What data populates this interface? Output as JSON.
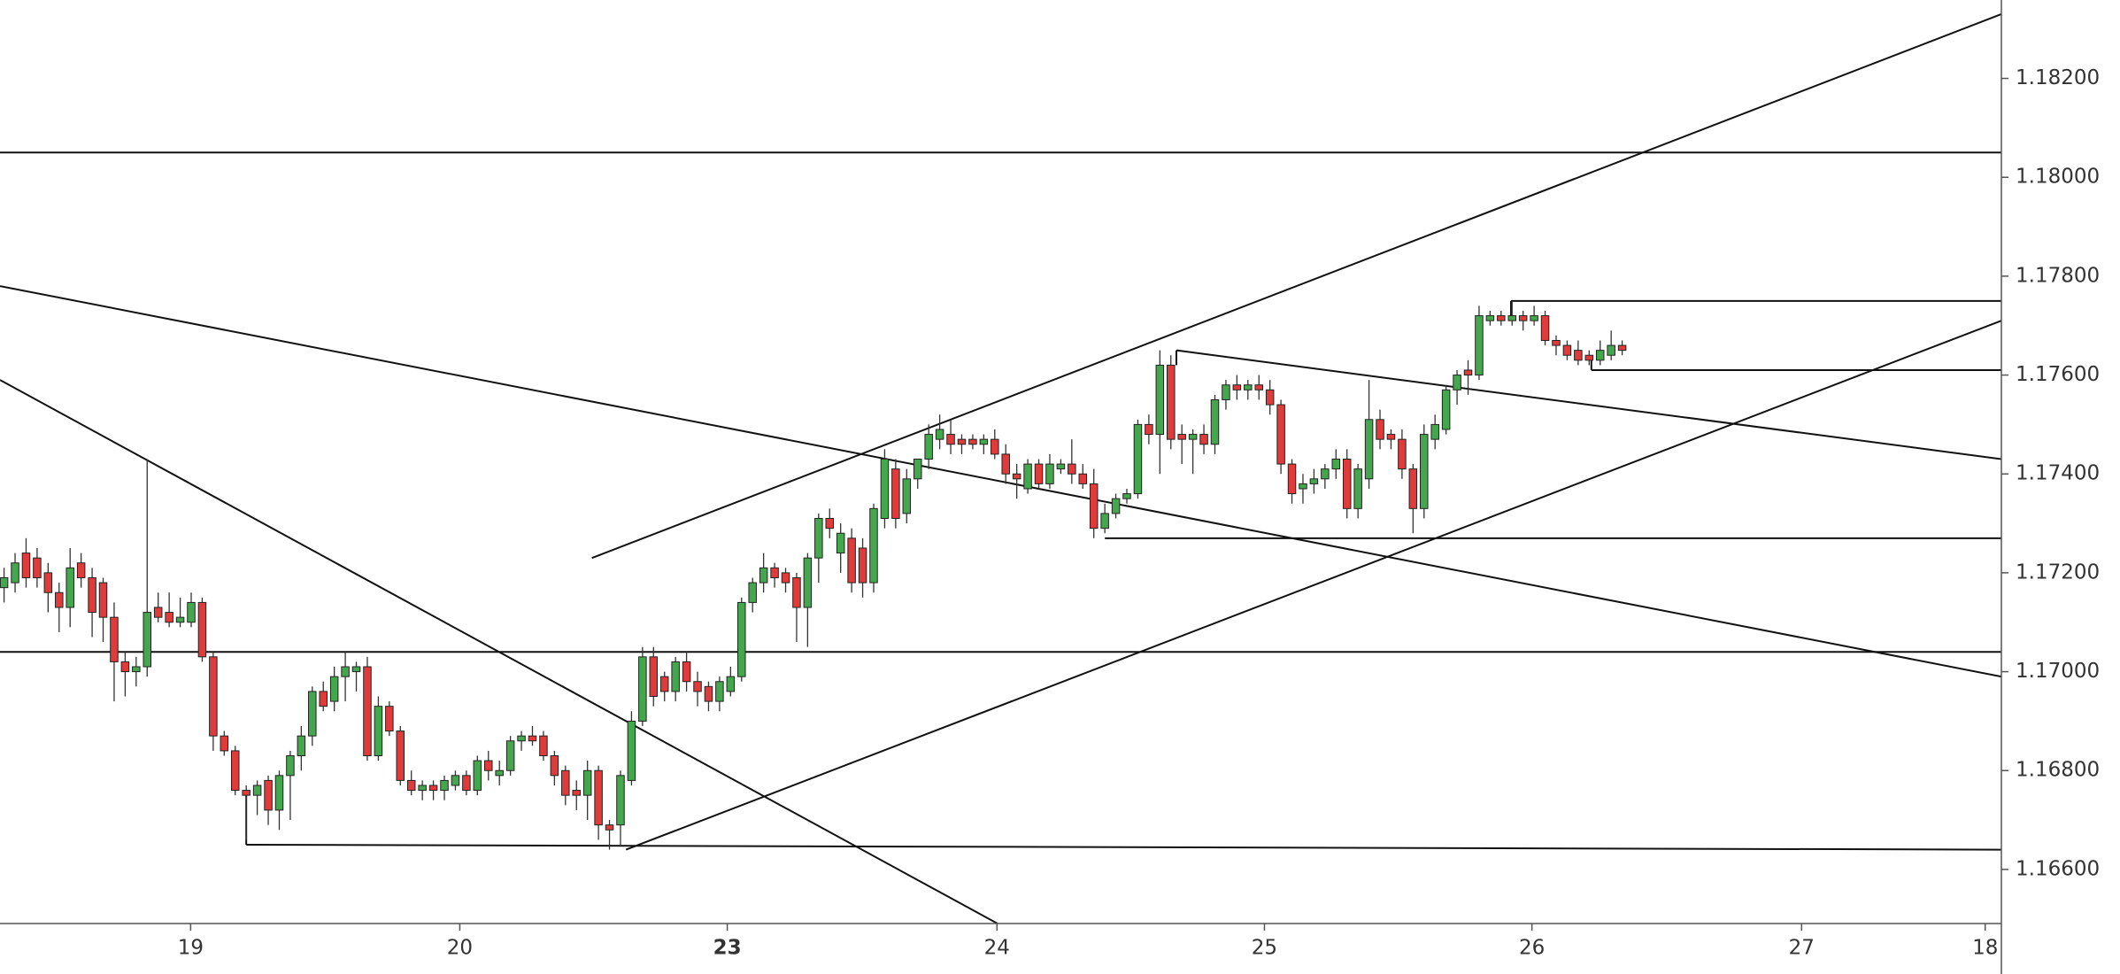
{
  "chart_data": {
    "type": "candlestick",
    "up_color": "#45a74d",
    "down_color": "#e03b3b",
    "xlim": [
      -0.37,
      181.45
    ],
    "xticks": [
      {
        "value": 16.95,
        "label": "19"
      },
      {
        "value": 41.4,
        "label": "20"
      },
      {
        "value": 65.7,
        "label": "23"
      },
      {
        "value": 90.2,
        "label": "24"
      },
      {
        "value": 114.5,
        "label": "25"
      },
      {
        "value": 138.8,
        "label": "26"
      },
      {
        "value": 163.3,
        "label": "27"
      },
      {
        "value": 179.98,
        "label": "18"
      }
    ],
    "ylim": [
      1.164906,
      1.183586
    ],
    "yticks": [
      {
        "value": 1.166,
        "label": "1.16600"
      },
      {
        "value": 1.168,
        "label": "1.16800"
      },
      {
        "value": 1.17,
        "label": "1.17000"
      },
      {
        "value": 1.172,
        "label": "1.17200"
      },
      {
        "value": 1.174,
        "label": "1.17400"
      },
      {
        "value": 1.176,
        "label": "1.17600"
      },
      {
        "value": 1.178,
        "label": "1.17800"
      },
      {
        "value": 1.18,
        "label": "1.18000"
      },
      {
        "value": 1.182,
        "label": "1.18200"
      }
    ],
    "open": [
      1.1717,
      1.1718,
      1.1724,
      1.1723,
      1.172,
      1.1716,
      1.1713,
      1.1722,
      1.1719,
      1.1718,
      1.1711,
      1.1702,
      1.17,
      1.1701,
      1.1713,
      1.1712,
      1.171,
      1.171,
      1.1714,
      1.1703,
      1.1687,
      1.1684,
      1.1676,
      1.1675,
      1.1678,
      1.1672,
      1.1679,
      1.1683,
      1.1687,
      1.1696,
      1.1694,
      1.1699,
      1.17,
      1.1701,
      1.1683,
      1.1693,
      1.1688,
      1.1678,
      1.1676,
      1.1677,
      1.1676,
      1.1677,
      1.1679,
      1.1676,
      1.1682,
      1.1679,
      1.168,
      1.1686,
      1.1687,
      1.1687,
      1.1683,
      1.168,
      1.1676,
      1.1675,
      1.168,
      1.1669,
      1.1669,
      1.1678,
      1.169,
      1.1703,
      1.1699,
      1.1696,
      1.1702,
      1.1698,
      1.1697,
      1.1694,
      1.1696,
      1.1699,
      1.1714,
      1.1718,
      1.1721,
      1.172,
      1.1719,
      1.1713,
      1.1723,
      1.1731,
      1.1724,
      1.1727,
      1.1725,
      1.1718,
      1.1731,
      1.1741,
      1.1732,
      1.1739,
      1.1743,
      1.1747,
      1.1748,
      1.1747,
      1.1747,
      1.1746,
      1.1747,
      1.1744,
      1.174,
      1.1737,
      1.1742,
      1.1738,
      1.1741,
      1.1742,
      1.174,
      1.1738,
      1.1729,
      1.1732,
      1.1735,
      1.1736,
      1.175,
      1.1748,
      1.1762,
      1.1748,
      1.1747,
      1.1748,
      1.1746,
      1.1755,
      1.1758,
      1.1757,
      1.1758,
      1.1757,
      1.1754,
      1.1742,
      1.1737,
      1.1738,
      1.1739,
      1.1741,
      1.1743,
      1.1733,
      1.1739,
      1.1751,
      1.1748,
      1.1747,
      1.1741,
      1.1733,
      1.1747,
      1.1749,
      1.1757,
      1.1761,
      1.176,
      1.1771,
      1.1772,
      1.1771,
      1.1772,
      1.1771,
      1.1772,
      1.1767,
      1.1766,
      1.1765,
      1.1764,
      1.1763,
      1.1764,
      1.1766
    ],
    "high": [
      1.1721,
      1.1724,
      1.1727,
      1.1725,
      1.1722,
      1.1718,
      1.1725,
      1.1724,
      1.1721,
      1.1719,
      1.1714,
      1.1704,
      1.1703,
      1.1743,
      1.1716,
      1.1716,
      1.1715,
      1.1716,
      1.1715,
      1.1704,
      1.1688,
      1.1685,
      1.1677,
      1.1678,
      1.1679,
      1.168,
      1.1684,
      1.1689,
      1.1697,
      1.1698,
      1.1701,
      1.1704,
      1.1702,
      1.1703,
      1.1695,
      1.1694,
      1.1689,
      1.168,
      1.1678,
      1.1678,
      1.1679,
      1.168,
      1.168,
      1.1683,
      1.1684,
      1.1682,
      1.1687,
      1.1688,
      1.1689,
      1.1688,
      1.1684,
      1.1681,
      1.1678,
      1.1682,
      1.1681,
      1.167,
      1.168,
      1.1692,
      1.1705,
      1.1705,
      1.17,
      1.1703,
      1.1704,
      1.17,
      1.1698,
      1.1699,
      1.1701,
      1.1715,
      1.1719,
      1.1724,
      1.1722,
      1.1721,
      1.172,
      1.1724,
      1.1732,
      1.1733,
      1.173,
      1.1729,
      1.1727,
      1.1734,
      1.1745,
      1.1743,
      1.1741,
      1.1743,
      1.175,
      1.1752,
      1.1751,
      1.1748,
      1.1748,
      1.1748,
      1.1749,
      1.1746,
      1.1742,
      1.1743,
      1.1743,
      1.1744,
      1.1743,
      1.1747,
      1.1742,
      1.1741,
      1.1734,
      1.1736,
      1.1737,
      1.1751,
      1.1752,
      1.1765,
      1.1764,
      1.175,
      1.1749,
      1.175,
      1.1756,
      1.1759,
      1.176,
      1.1759,
      1.176,
      1.1759,
      1.1755,
      1.1743,
      1.174,
      1.1741,
      1.1742,
      1.1745,
      1.1745,
      1.1742,
      1.1759,
      1.1753,
      1.1749,
      1.1749,
      1.1742,
      1.175,
      1.1752,
      1.1758,
      1.1761,
      1.1763,
      1.1774,
      1.1773,
      1.1773,
      1.1775,
      1.1773,
      1.1774,
      1.1773,
      1.1768,
      1.1767,
      1.1767,
      1.1765,
      1.1767,
      1.1769,
      1.1767
    ],
    "low": [
      1.1714,
      1.1716,
      1.1717,
      1.1717,
      1.1712,
      1.1708,
      1.1709,
      1.1717,
      1.1707,
      1.1706,
      1.1694,
      1.1695,
      1.1697,
      1.1699,
      1.171,
      1.1709,
      1.1709,
      1.1709,
      1.1702,
      1.1684,
      1.1683,
      1.1675,
      1.1666,
      1.1671,
      1.1669,
      1.1668,
      1.167,
      1.168,
      1.1685,
      1.1692,
      1.1692,
      1.1694,
      1.1696,
      1.1682,
      1.1682,
      1.1687,
      1.1677,
      1.1675,
      1.1674,
      1.1674,
      1.1674,
      1.1676,
      1.1675,
      1.1675,
      1.1678,
      1.1677,
      1.1679,
      1.1684,
      1.1685,
      1.1682,
      1.1677,
      1.1673,
      1.1672,
      1.167,
      1.1666,
      1.1664,
      1.1665,
      1.1677,
      1.1689,
      1.1693,
      1.1694,
      1.1694,
      1.1696,
      1.1693,
      1.1692,
      1.1692,
      1.1695,
      1.1698,
      1.1712,
      1.1716,
      1.1717,
      1.1716,
      1.1706,
      1.1705,
      1.1718,
      1.1727,
      1.172,
      1.1716,
      1.1715,
      1.1716,
      1.1729,
      1.1729,
      1.173,
      1.1737,
      1.1741,
      1.1745,
      1.1744,
      1.1744,
      1.1745,
      1.1744,
      1.1743,
      1.1738,
      1.1735,
      1.1736,
      1.1737,
      1.1737,
      1.174,
      1.1738,
      1.1737,
      1.1727,
      1.1728,
      1.1731,
      1.1734,
      1.1735,
      1.1746,
      1.174,
      1.1745,
      1.1742,
      1.174,
      1.1744,
      1.1744,
      1.1753,
      1.1755,
      1.1755,
      1.1755,
      1.1752,
      1.174,
      1.1734,
      1.1734,
      1.1736,
      1.1737,
      1.1739,
      1.1731,
      1.1731,
      1.1737,
      1.1745,
      1.1745,
      1.1739,
      1.1728,
      1.1731,
      1.1745,
      1.1748,
      1.1754,
      1.1756,
      1.1759,
      1.177,
      1.177,
      1.177,
      1.1769,
      1.177,
      1.1766,
      1.1764,
      1.1763,
      1.1762,
      1.1762,
      1.1762,
      1.1763,
      1.1764
    ],
    "close": [
      1.1719,
      1.1722,
      1.1719,
      1.1719,
      1.1716,
      1.1713,
      1.1721,
      1.1719,
      1.1712,
      1.1711,
      1.1702,
      1.17,
      1.1701,
      1.1712,
      1.1711,
      1.171,
      1.1711,
      1.1714,
      1.1703,
      1.1687,
      1.1684,
      1.1676,
      1.1675,
      1.1677,
      1.1672,
      1.1679,
      1.1683,
      1.1687,
      1.1696,
      1.1693,
      1.1699,
      1.1701,
      1.1701,
      1.1683,
      1.1693,
      1.1688,
      1.1678,
      1.1676,
      1.1677,
      1.1676,
      1.1678,
      1.1679,
      1.1676,
      1.1682,
      1.168,
      1.168,
      1.1686,
      1.1687,
      1.1686,
      1.1683,
      1.1679,
      1.1675,
      1.1675,
      1.168,
      1.1669,
      1.1668,
      1.1679,
      1.169,
      1.1703,
      1.1695,
      1.1696,
      1.1702,
      1.1698,
      1.1696,
      1.1694,
      1.1698,
      1.1699,
      1.1714,
      1.1718,
      1.1721,
      1.1719,
      1.1718,
      1.1713,
      1.1723,
      1.1731,
      1.1729,
      1.1728,
      1.1718,
      1.1718,
      1.1733,
      1.1743,
      1.1731,
      1.1739,
      1.1743,
      1.1748,
      1.1749,
      1.1746,
      1.1746,
      1.1746,
      1.1747,
      1.1744,
      1.174,
      1.1739,
      1.1742,
      1.1738,
      1.1742,
      1.1742,
      1.174,
      1.1738,
      1.1729,
      1.1732,
      1.1735,
      1.1736,
      1.175,
      1.1748,
      1.1762,
      1.1747,
      1.1747,
      1.1748,
      1.1746,
      1.1755,
      1.1758,
      1.1757,
      1.1758,
      1.1757,
      1.1754,
      1.1742,
      1.1736,
      1.1738,
      1.1739,
      1.1741,
      1.1743,
      1.1733,
      1.1741,
      1.1751,
      1.1747,
      1.1747,
      1.1741,
      1.1733,
      1.1748,
      1.175,
      1.1757,
      1.176,
      1.176,
      1.1772,
      1.1772,
      1.1771,
      1.1772,
      1.1771,
      1.1772,
      1.1767,
      1.1766,
      1.1764,
      1.1763,
      1.1763,
      1.1765,
      1.1766,
      1.1765
    ],
    "drawings": [
      {
        "x": [
          -0.37,
          181.45
        ],
        "y": [
          1.1805,
          1.1805
        ]
      },
      {
        "x": [
          -0.37,
          181.45
        ],
        "y": [
          1.1704,
          1.1704
        ]
      },
      {
        "x": [
          -0.37,
          181.45
        ],
        "y": [
          1.1778,
          1.1699
        ]
      },
      {
        "x": [
          106.5,
          181.45
        ],
        "y": [
          1.1765,
          1.1743
        ]
      },
      {
        "x": [
          -0.37,
          90.3
        ],
        "y": [
          1.1759,
          1.1649
        ]
      },
      {
        "x": [
          53.4,
          181.45
        ],
        "y": [
          1.1723,
          1.1833
        ]
      },
      {
        "x": [
          56.5,
          181.45
        ],
        "y": [
          1.1664,
          1.1771
        ]
      },
      {
        "x": [
          100.0,
          181.45
        ],
        "y": [
          1.1727,
          1.1727
        ]
      },
      {
        "x": [
          22.0,
          181.45
        ],
        "y": [
          1.1665,
          1.1664
        ]
      },
      {
        "x": [
          22.0,
          22.0
        ],
        "y": [
          1.1676,
          1.1665
        ]
      },
      {
        "x": [
          136.9,
          181.45
        ],
        "y": [
          1.1775,
          1.1775
        ]
      },
      {
        "x": [
          136.9,
          136.9
        ],
        "y": [
          1.1772,
          1.1775
        ]
      },
      {
        "x": [
          144.2,
          181.45
        ],
        "y": [
          1.1761,
          1.1761
        ]
      },
      {
        "x": [
          144.2,
          144.2
        ],
        "y": [
          1.1763,
          1.1761
        ]
      },
      {
        "x": [
          106.5,
          106.5
        ],
        "y": [
          1.1762,
          1.1765
        ]
      }
    ]
  }
}
